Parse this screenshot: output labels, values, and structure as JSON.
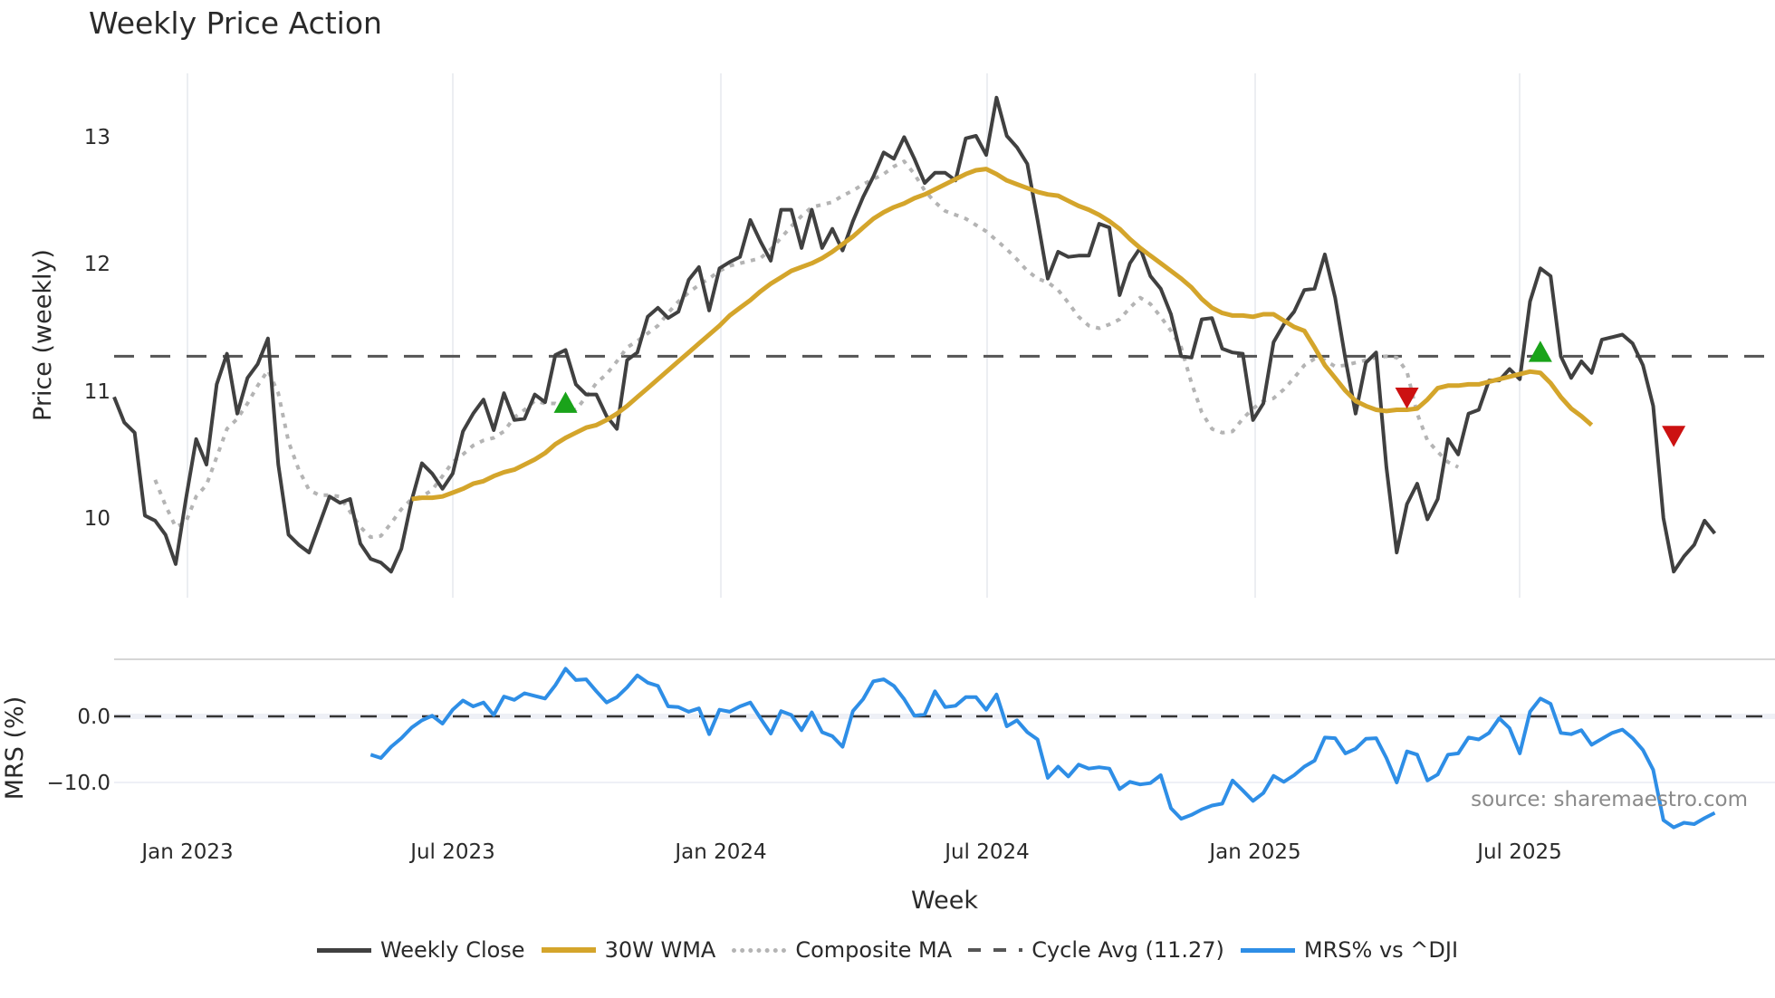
{
  "title": "Weekly Price Action",
  "chart_data": [
    {
      "type": "line",
      "panel": "price",
      "title": "Weekly Price Action",
      "xlabel": "Week",
      "ylabel": "Price (weekly)",
      "ylim": [
        9.4,
        13.5
      ],
      "yticks": [
        10,
        11,
        12,
        13
      ],
      "xticks": [
        "Jan 2023",
        "Jul 2023",
        "Jan 2024",
        "Jul 2024",
        "Jan 2025",
        "Jul 2025"
      ],
      "grid": "vertical",
      "x_start_week": "2022-11-14",
      "series": [
        {
          "name": "Weekly Close",
          "color": "#404040",
          "values": [
            10.95,
            10.75,
            10.67,
            10.02,
            9.98,
            9.87,
            9.64,
            10.15,
            10.62,
            10.42,
            11.05,
            11.29,
            10.82,
            11.1,
            11.21,
            11.41,
            10.42,
            9.87,
            9.79,
            9.73,
            9.95,
            10.17,
            10.12,
            10.15,
            9.8,
            9.68,
            9.65,
            9.58,
            9.76,
            10.14,
            10.43,
            10.35,
            10.23,
            10.35,
            10.68,
            10.82,
            10.93,
            10.69,
            10.98,
            10.77,
            10.78,
            10.97,
            10.91,
            11.28,
            11.32,
            11.05,
            10.97,
            10.97,
            10.8,
            10.7,
            11.24,
            11.3,
            11.58,
            11.65,
            11.57,
            11.62,
            11.87,
            11.97,
            11.63,
            11.96,
            12.01,
            12.05,
            12.34,
            12.17,
            12.02,
            12.42,
            12.42,
            12.12,
            12.42,
            12.12,
            12.27,
            12.1,
            12.33,
            12.52,
            12.68,
            12.87,
            12.82,
            12.99,
            12.82,
            12.63,
            12.71,
            12.71,
            12.65,
            12.98,
            13.0,
            12.85,
            13.3,
            13.0,
            12.91,
            12.78,
            12.34,
            11.88,
            12.09,
            12.05,
            12.06,
            12.06,
            12.31,
            12.28,
            11.75,
            12.0,
            12.12,
            11.9,
            11.8,
            11.6,
            11.27,
            11.26,
            11.56,
            11.57,
            11.33,
            11.3,
            11.29,
            10.77,
            10.9,
            11.38,
            11.52,
            11.62,
            11.79,
            11.8,
            12.07,
            11.73,
            11.25,
            10.82,
            11.22,
            11.3,
            10.4,
            9.73,
            10.11,
            10.27,
            9.99,
            10.15,
            10.62,
            10.5,
            10.82,
            10.85,
            11.08,
            11.08,
            11.17,
            11.09,
            11.7,
            11.96,
            11.9,
            11.27,
            11.1,
            11.23,
            11.14,
            11.4,
            11.42,
            11.44,
            11.37,
            11.2,
            10.88,
            10.0,
            9.58,
            9.7,
            9.79,
            9.98,
            9.88
          ]
        },
        {
          "name": "30W WMA",
          "color": "#d4a52b",
          "start_index": 29,
          "values": [
            10.15,
            10.16,
            10.16,
            10.17,
            10.2,
            10.23,
            10.27,
            10.29,
            10.33,
            10.36,
            10.38,
            10.42,
            10.46,
            10.51,
            10.58,
            10.63,
            10.67,
            10.71,
            10.73,
            10.77,
            10.82,
            10.88,
            10.95,
            11.02,
            11.09,
            11.16,
            11.23,
            11.3,
            11.37,
            11.44,
            11.51,
            11.59,
            11.65,
            11.71,
            11.78,
            11.84,
            11.89,
            11.94,
            11.97,
            12.0,
            12.04,
            12.09,
            12.15,
            12.21,
            12.28,
            12.35,
            12.4,
            12.44,
            12.47,
            12.51,
            12.54,
            12.58,
            12.62,
            12.66,
            12.7,
            12.73,
            12.74,
            12.7,
            12.65,
            12.62,
            12.59,
            12.56,
            12.54,
            12.53,
            12.49,
            12.45,
            12.42,
            12.38,
            12.33,
            12.27,
            12.19,
            12.12,
            12.06,
            12.0,
            11.94,
            11.88,
            11.81,
            11.72,
            11.65,
            11.61,
            11.59,
            11.59,
            11.58,
            11.6,
            11.6,
            11.55,
            11.5,
            11.47,
            11.34,
            11.2,
            11.1,
            11.0,
            10.92,
            10.88,
            10.85,
            10.84,
            10.85,
            10.85,
            10.86,
            10.93,
            11.02,
            11.04,
            11.04,
            11.05,
            11.05,
            11.07,
            11.09,
            11.11,
            11.13,
            11.15,
            11.14,
            11.06,
            10.95,
            10.86,
            10.8,
            10.73
          ]
        },
        {
          "name": "Composite MA",
          "color": "#b4b4b4",
          "start_index": 4,
          "values": [
            10.3,
            10.1,
            9.93,
            9.97,
            10.17,
            10.26,
            10.48,
            10.7,
            10.78,
            10.9,
            11.04,
            11.16,
            10.98,
            10.6,
            10.38,
            10.22,
            10.18,
            10.18,
            10.17,
            10.05,
            9.93,
            9.85,
            9.86,
            9.96,
            10.07,
            10.15,
            10.17,
            10.22,
            10.33,
            10.44,
            10.5,
            10.57,
            10.61,
            10.63,
            10.68,
            10.79,
            10.85,
            10.92,
            10.9,
            10.9,
            10.86,
            10.85,
            10.95,
            11.06,
            11.13,
            11.23,
            11.34,
            11.39,
            11.45,
            11.51,
            11.61,
            11.7,
            11.77,
            11.83,
            11.88,
            11.94,
            11.98,
            12.0,
            12.02,
            12.04,
            12.11,
            12.2,
            12.29,
            12.37,
            12.44,
            12.46,
            12.48,
            12.53,
            12.57,
            12.62,
            12.66,
            12.7,
            12.76,
            12.8,
            12.7,
            12.57,
            12.48,
            12.41,
            12.38,
            12.35,
            12.3,
            12.25,
            12.18,
            12.11,
            12.03,
            11.94,
            11.88,
            11.85,
            11.79,
            11.69,
            11.58,
            11.51,
            11.49,
            11.52,
            11.56,
            11.65,
            11.73,
            11.68,
            11.58,
            11.47,
            11.34,
            11.06,
            10.83,
            10.7,
            10.67,
            10.68,
            10.78,
            10.86,
            10.92,
            10.94,
            11.01,
            11.1,
            11.2,
            11.25,
            11.24,
            11.19,
            11.2,
            11.22,
            11.24,
            11.26,
            11.27,
            11.26,
            11.15,
            10.82,
            10.61,
            10.52,
            10.44,
            10.4
          ]
        },
        {
          "name": "Cycle Avg (11.27)",
          "color": "#555555",
          "constant": 11.27
        }
      ],
      "markers": [
        {
          "type": "buy",
          "shape": "triangle-up",
          "color": "#1aa31a",
          "week_index": 44,
          "value": 10.9
        },
        {
          "type": "sell",
          "shape": "triangle-down",
          "color": "#cc1111",
          "week_index": 126,
          "value": 10.95
        },
        {
          "type": "buy",
          "shape": "triangle-up",
          "color": "#1aa31a",
          "week_index": 139,
          "value": 11.3
        },
        {
          "type": "sell",
          "shape": "triangle-down",
          "color": "#cc1111",
          "week_index": 152,
          "value": 10.65
        }
      ]
    },
    {
      "type": "line",
      "panel": "mrs",
      "ylabel": "MRS (%)",
      "yticks": [
        0.0,
        -10.0
      ],
      "ylim": [
        -18,
        8
      ],
      "series": [
        {
          "name": "MRS% vs ^DJI",
          "color": "#2e8ee6",
          "start_index": 25,
          "values": [
            -5.8,
            -6.3,
            -4.6,
            -3.3,
            -1.7,
            -0.6,
            0.1,
            -1.1,
            1.0,
            2.4,
            1.5,
            2.1,
            0.2,
            3.0,
            2.5,
            3.5,
            3.1,
            2.7,
            4.7,
            7.2,
            5.5,
            5.6,
            3.8,
            2.1,
            2.9,
            4.4,
            6.2,
            5.1,
            4.6,
            1.5,
            1.4,
            0.7,
            1.2,
            -2.7,
            1.0,
            0.7,
            1.5,
            2.1,
            -0.3,
            -2.6,
            0.8,
            0.2,
            -2.1,
            0.6,
            -2.4,
            -3.0,
            -4.6,
            0.8,
            2.6,
            5.3,
            5.6,
            4.6,
            2.6,
            0.1,
            0.3,
            3.8,
            1.4,
            1.6,
            2.9,
            2.9,
            1.0,
            3.3,
            -1.5,
            -0.6,
            -2.4,
            -3.5,
            -9.3,
            -7.6,
            -9.1,
            -7.3,
            -7.9,
            -7.7,
            -7.9,
            -11.0,
            -9.9,
            -10.3,
            -10.1,
            -8.9,
            -13.9,
            -15.5,
            -14.9,
            -14.1,
            -13.5,
            -13.2,
            -9.7,
            -11.2,
            -12.8,
            -11.6,
            -9.0,
            -9.9,
            -8.9,
            -7.6,
            -6.7,
            -3.2,
            -3.3,
            -5.6,
            -4.9,
            -3.4,
            -3.3,
            -6.3,
            -10.0,
            -5.3,
            -5.8,
            -9.7,
            -8.8,
            -5.8,
            -5.6,
            -3.2,
            -3.5,
            -2.5,
            -0.3,
            -1.8,
            -5.6,
            0.7,
            2.7,
            1.9,
            -2.5,
            -2.7,
            -2.1,
            -4.3,
            -3.4,
            -2.5,
            -2.0,
            -3.3,
            -5.1,
            -8.1,
            -15.7,
            -16.8,
            -16.1,
            -16.3,
            -15.4,
            -14.6
          ]
        }
      ],
      "reference_line": 0.0
    }
  ],
  "axes": {
    "xlabel": "Week",
    "price_ylabel": "Price (weekly)",
    "mrs_ylabel": "MRS (%)",
    "price_ticks": [
      "10",
      "11",
      "12",
      "13"
    ],
    "mrs_ticks": [
      "0.0",
      "−10.0"
    ],
    "x_ticks": [
      "Jan 2023",
      "Jul 2023",
      "Jan 2024",
      "Jul 2024",
      "Jan 2025",
      "Jul 2025"
    ]
  },
  "source": "source: sharemaestro.com",
  "legend": [
    {
      "label": "Weekly Close",
      "color": "#404040",
      "style": "solid"
    },
    {
      "label": "30W WMA",
      "color": "#d4a52b",
      "style": "solid"
    },
    {
      "label": "Composite MA",
      "color": "#b4b4b4",
      "style": "dotted"
    },
    {
      "label": "Cycle Avg (11.27)",
      "color": "#555555",
      "style": "dashed"
    },
    {
      "label": "MRS% vs ^DJI",
      "color": "#2e8ee6",
      "style": "solid"
    }
  ]
}
